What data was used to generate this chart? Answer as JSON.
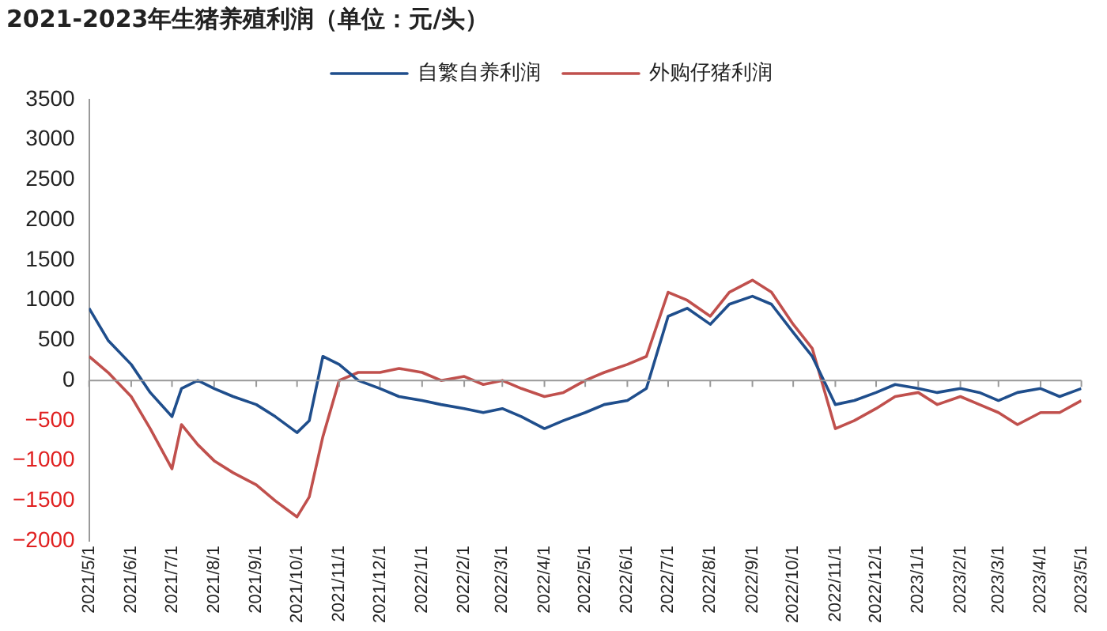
{
  "chart_data": {
    "type": "line",
    "title": "2021-2023年生猪养殖利润（单位：元/头）",
    "x": [
      "2021-05-01",
      "2021-05-15",
      "2021-06-01",
      "2021-06-15",
      "2021-07-01",
      "2021-07-08",
      "2021-07-20",
      "2021-08-01",
      "2021-08-15",
      "2021-09-01",
      "2021-09-15",
      "2021-10-01",
      "2021-10-10",
      "2021-10-20",
      "2021-11-01",
      "2021-11-15",
      "2021-12-01",
      "2021-12-15",
      "2022-01-01",
      "2022-01-15",
      "2022-02-01",
      "2022-02-15",
      "2022-03-01",
      "2022-03-15",
      "2022-04-01",
      "2022-04-15",
      "2022-05-01",
      "2022-05-15",
      "2022-06-01",
      "2022-06-15",
      "2022-07-01",
      "2022-07-15",
      "2022-08-01",
      "2022-08-15",
      "2022-09-01",
      "2022-09-15",
      "2022-10-01",
      "2022-10-15",
      "2022-11-01",
      "2022-11-15",
      "2022-12-01",
      "2022-12-15",
      "2023-01-01",
      "2023-01-15",
      "2023-02-01",
      "2023-02-15",
      "2023-03-01",
      "2023-03-15",
      "2023-04-01",
      "2023-04-15",
      "2023-05-01"
    ],
    "series": [
      {
        "name": "自繁自养利润",
        "color": "#1f4e8c",
        "values": [
          900,
          500,
          200,
          -150,
          -450,
          -100,
          0,
          -100,
          -200,
          -300,
          -450,
          -650,
          -500,
          300,
          200,
          0,
          -100,
          -200,
          -250,
          -300,
          -350,
          -400,
          -350,
          -450,
          -600,
          -500,
          -400,
          -300,
          -250,
          -100,
          800,
          900,
          700,
          950,
          1050,
          950,
          600,
          300,
          -300,
          -250,
          -150,
          -50,
          -100,
          -150,
          -100,
          -150,
          -250,
          -150,
          -100,
          -200,
          -100
        ]
      },
      {
        "name": "外购仔猪利润",
        "color": "#c0504d",
        "values": [
          300,
          100,
          -200,
          -600,
          -1100,
          -550,
          -800,
          -1000,
          -1150,
          -1300,
          -1500,
          -1700,
          -1450,
          -700,
          0,
          100,
          100,
          150,
          100,
          0,
          50,
          -50,
          0,
          -100,
          -200,
          -150,
          0,
          100,
          200,
          300,
          1100,
          1000,
          800,
          1100,
          1250,
          1100,
          700,
          400,
          -600,
          -500,
          -350,
          -200,
          -150,
          -300,
          -200,
          -300,
          -400,
          -550,
          -400,
          -400,
          -250
        ]
      }
    ],
    "xlim": [
      "2021-05-01",
      "2023-05-01"
    ],
    "xticks": [
      {
        "value": "2021-05-01",
        "label": "2021/5/1"
      },
      {
        "value": "2021-06-01",
        "label": "2021/6/1"
      },
      {
        "value": "2021-07-01",
        "label": "2021/7/1"
      },
      {
        "value": "2021-08-01",
        "label": "2021/8/1"
      },
      {
        "value": "2021-09-01",
        "label": "2021/9/1"
      },
      {
        "value": "2021-10-01",
        "label": "2021/10/1"
      },
      {
        "value": "2021-11-01",
        "label": "2021/11/1"
      },
      {
        "value": "2021-12-01",
        "label": "2021/12/1"
      },
      {
        "value": "2022-01-01",
        "label": "2022/1/1"
      },
      {
        "value": "2022-02-01",
        "label": "2022/2/1"
      },
      {
        "value": "2022-03-01",
        "label": "2022/3/1"
      },
      {
        "value": "2022-04-01",
        "label": "2022/4/1"
      },
      {
        "value": "2022-05-01",
        "label": "2022/5/1"
      },
      {
        "value": "2022-06-01",
        "label": "2022/6/1"
      },
      {
        "value": "2022-07-01",
        "label": "2022/7/1"
      },
      {
        "value": "2022-08-01",
        "label": "2022/8/1"
      },
      {
        "value": "2022-09-01",
        "label": "2022/9/1"
      },
      {
        "value": "2022-10-01",
        "label": "2022/10/1"
      },
      {
        "value": "2022-11-01",
        "label": "2022/11/1"
      },
      {
        "value": "2022-12-01",
        "label": "2022/12/1"
      },
      {
        "value": "2023-01-01",
        "label": "2023/1/1"
      },
      {
        "value": "2023-02-01",
        "label": "2023/2/1"
      },
      {
        "value": "2023-03-01",
        "label": "2023/3/1"
      },
      {
        "value": "2023-04-01",
        "label": "2023/4/1"
      },
      {
        "value": "2023-05-01",
        "label": "2023/5/1"
      }
    ],
    "ylim": [
      -2000,
      3500
    ],
    "yticks": [
      -2000,
      -1500,
      -1000,
      -500,
      0,
      500,
      1000,
      1500,
      2000,
      2500,
      3000,
      3500
    ],
    "ref_lines": [
      {
        "axis": "y",
        "value": 0,
        "color": "#999999"
      }
    ],
    "grid": false,
    "legend": "top",
    "marker": "none",
    "line_style": "solid"
  }
}
